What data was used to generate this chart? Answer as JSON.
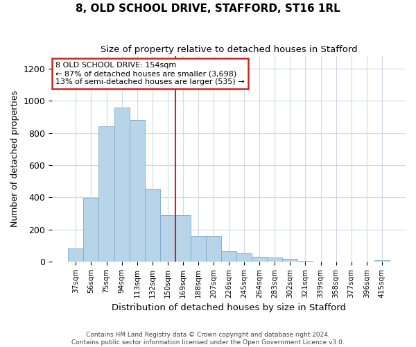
{
  "title1": "8, OLD SCHOOL DRIVE, STAFFORD, ST16 1RL",
  "title2": "Size of property relative to detached houses in Stafford",
  "xlabel": "Distribution of detached houses by size in Stafford",
  "ylabel": "Number of detached properties",
  "categories": [
    "37sqm",
    "56sqm",
    "75sqm",
    "94sqm",
    "113sqm",
    "132sqm",
    "150sqm",
    "169sqm",
    "188sqm",
    "207sqm",
    "226sqm",
    "245sqm",
    "264sqm",
    "283sqm",
    "302sqm",
    "321sqm",
    "339sqm",
    "358sqm",
    "377sqm",
    "396sqm",
    "415sqm"
  ],
  "values": [
    80,
    395,
    840,
    960,
    880,
    455,
    290,
    290,
    160,
    160,
    65,
    50,
    30,
    25,
    18,
    5,
    0,
    0,
    0,
    0,
    8
  ],
  "bar_color": "#b8d4e8",
  "bar_edge_color": "#7aaac8",
  "vline_color": "#cc2222",
  "vline_pos": 6.5,
  "annotation_lines": [
    "8 OLD SCHOOL DRIVE: 154sqm",
    "← 87% of detached houses are smaller (3,698)",
    "13% of semi-detached houses are larger (535) →"
  ],
  "ylim": [
    0,
    1280
  ],
  "yticks": [
    0,
    200,
    400,
    600,
    800,
    1000,
    1200
  ],
  "footer1": "Contains HM Land Registry data © Crown copyright and database right 2024.",
  "footer2": "Contains public sector information licensed under the Open Government Licence v3.0.",
  "background_color": "#ffffff",
  "plot_background": "#ffffff",
  "grid_color": "#d0d8e8"
}
